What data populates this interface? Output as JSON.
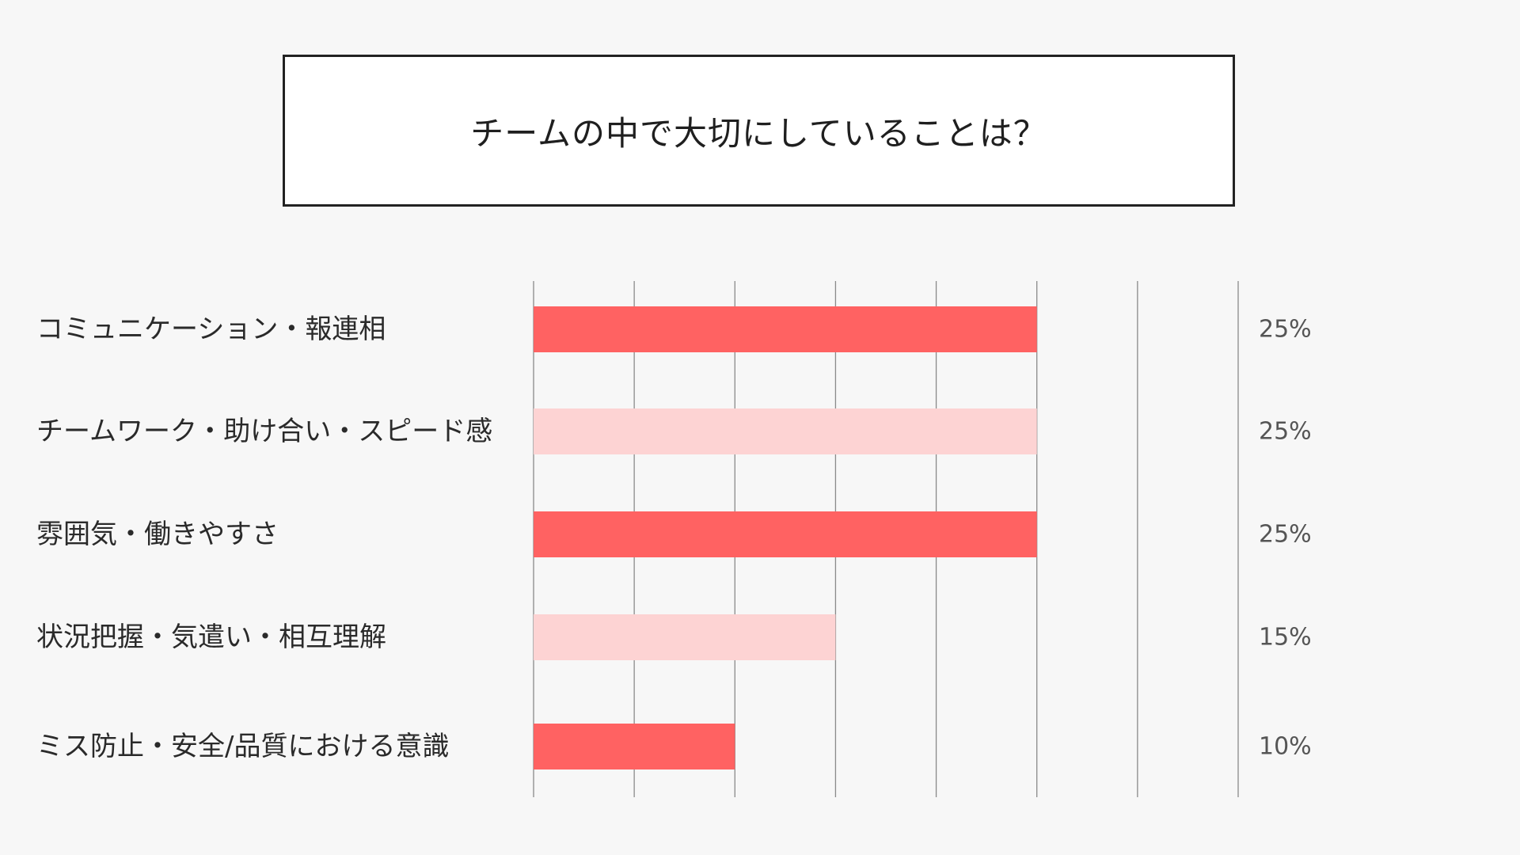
{
  "chart_data": {
    "type": "bar",
    "orientation": "horizontal",
    "title": "チームの中で大切にしていることは？",
    "categories": [
      "コミュニケーション・報連相",
      "チームワーク・助け合い・スピード感",
      "雰囲気・働きやすさ",
      "状況把握・気遣い・相互理解",
      "ミス防止・安全/品質における意識"
    ],
    "values": [
      25,
      25,
      25,
      15,
      10
    ],
    "value_labels": [
      "25%",
      "25%",
      "25%",
      "15%",
      "10%"
    ],
    "xlim": [
      0,
      35
    ],
    "grid": true,
    "legend": "none",
    "colors": [
      "#ff6262",
      "#fdd3d3",
      "#ff6262",
      "#fdd3d3",
      "#ff6262"
    ]
  }
}
